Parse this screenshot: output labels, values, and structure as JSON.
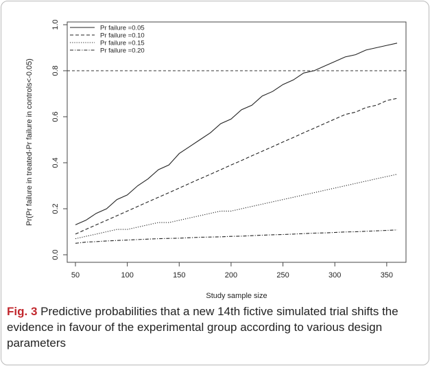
{
  "caption": {
    "label": "Fig. 3",
    "text": " Predictive probabilities that a new 14th fictive simulated trial shifts the evidence in favour of the experimental group according to various design parameters"
  },
  "chart_data": {
    "type": "line",
    "title": "",
    "xlabel": "Study sample size",
    "ylabel": "Pr(Pr failure in treated-Pr failure in controls<-0.05)",
    "xlim": [
      50,
      360
    ],
    "ylim": [
      0,
      1
    ],
    "xticks": [
      50,
      100,
      150,
      200,
      250,
      300,
      350
    ],
    "yticks": [
      0.0,
      0.2,
      0.4,
      0.6,
      0.8,
      1.0
    ],
    "xtick_labels": [
      "50",
      "100",
      "150",
      "200",
      "250",
      "300",
      "350"
    ],
    "ytick_labels": [
      "0.0",
      "0.2",
      "0.4",
      "0.6",
      "0.8",
      "1.0"
    ],
    "reference_line": {
      "y": 0.8,
      "style": "dashed"
    },
    "legend_position": "top-left",
    "x": [
      50,
      60,
      70,
      80,
      90,
      100,
      110,
      120,
      130,
      140,
      150,
      160,
      170,
      180,
      190,
      200,
      210,
      220,
      230,
      240,
      250,
      260,
      270,
      280,
      290,
      300,
      310,
      320,
      330,
      340,
      350,
      360
    ],
    "series": [
      {
        "name": "Pr failure =0.05",
        "dash": "solid",
        "values": [
          0.13,
          0.15,
          0.18,
          0.2,
          0.24,
          0.26,
          0.3,
          0.33,
          0.37,
          0.39,
          0.44,
          0.47,
          0.5,
          0.53,
          0.57,
          0.59,
          0.63,
          0.65,
          0.69,
          0.71,
          0.74,
          0.76,
          0.79,
          0.8,
          0.82,
          0.84,
          0.86,
          0.87,
          0.89,
          0.9,
          0.91,
          0.92
        ]
      },
      {
        "name": "Pr failure =0.10",
        "dash": "dashed",
        "values": [
          0.09,
          0.11,
          0.13,
          0.15,
          0.17,
          0.19,
          0.21,
          0.23,
          0.25,
          0.27,
          0.29,
          0.31,
          0.33,
          0.35,
          0.37,
          0.39,
          0.41,
          0.43,
          0.45,
          0.47,
          0.49,
          0.51,
          0.53,
          0.55,
          0.57,
          0.59,
          0.61,
          0.62,
          0.64,
          0.65,
          0.67,
          0.68
        ]
      },
      {
        "name": "Pr failure =0.15",
        "dash": "dotted",
        "values": [
          0.07,
          0.08,
          0.09,
          0.1,
          0.11,
          0.11,
          0.12,
          0.13,
          0.14,
          0.14,
          0.15,
          0.16,
          0.17,
          0.18,
          0.19,
          0.19,
          0.2,
          0.21,
          0.22,
          0.23,
          0.24,
          0.25,
          0.26,
          0.27,
          0.28,
          0.29,
          0.3,
          0.31,
          0.32,
          0.33,
          0.34,
          0.35
        ]
      },
      {
        "name": "Pr failure =0.20",
        "dash": "dotdash",
        "values": [
          0.05,
          0.055,
          0.057,
          0.06,
          0.062,
          0.064,
          0.066,
          0.068,
          0.07,
          0.071,
          0.072,
          0.074,
          0.076,
          0.077,
          0.078,
          0.08,
          0.081,
          0.083,
          0.085,
          0.087,
          0.088,
          0.09,
          0.092,
          0.094,
          0.095,
          0.097,
          0.099,
          0.1,
          0.102,
          0.104,
          0.106,
          0.108
        ]
      }
    ]
  }
}
